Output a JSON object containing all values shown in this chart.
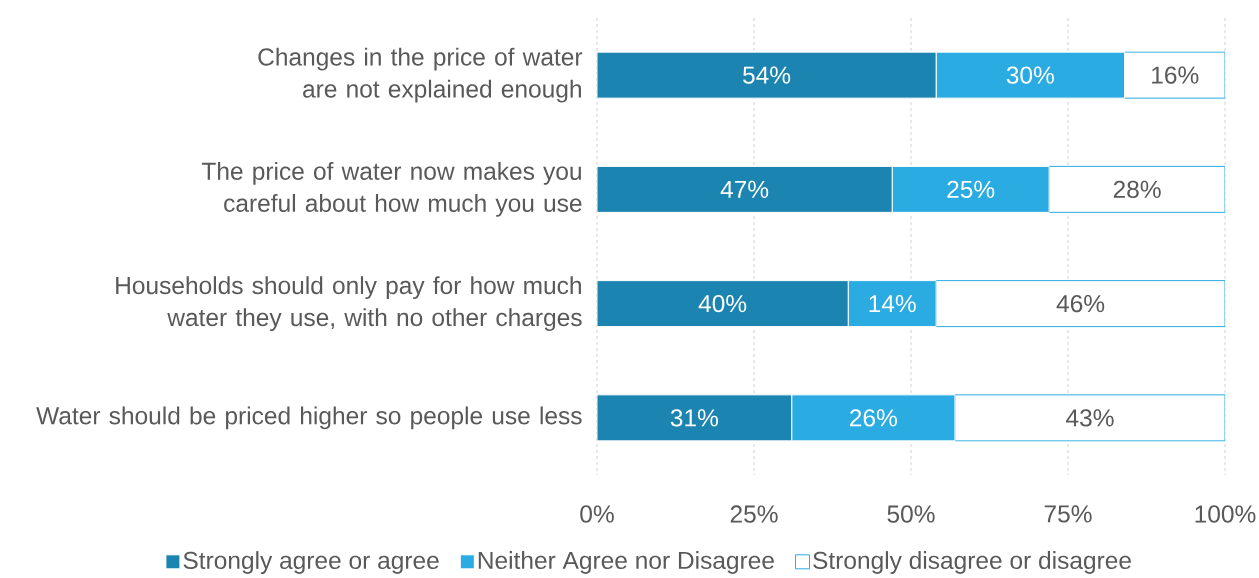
{
  "chart_data": {
    "type": "bar",
    "orientation": "horizontal",
    "stacked": true,
    "categories": [
      "Changes in the price of water are not explained enough",
      "The price of water now makes you careful about how much you use",
      "Households should only pay for how much water they use, with no other charges",
      "Water should be priced higher so people use less"
    ],
    "series": [
      {
        "name": "Strongly agree or agree",
        "color": "#1b84b0",
        "values": [
          54,
          47,
          40,
          31
        ],
        "value_labels": [
          "54%",
          "47%",
          "40%",
          "31%"
        ]
      },
      {
        "name": "Neither Agree nor Disagree",
        "color": "#2aabe2",
        "values": [
          30,
          25,
          14,
          26
        ],
        "value_labels": [
          "30%",
          "25%",
          "14%",
          "26%"
        ]
      },
      {
        "name": "Strongly disagree or disagree",
        "color": "#ffffff",
        "values": [
          16,
          28,
          46,
          43
        ],
        "value_labels": [
          "16%",
          "28%",
          "46%",
          "43%"
        ]
      }
    ],
    "xlim": [
      0,
      100
    ],
    "xticks": [
      {
        "value": 0,
        "label": "0%"
      },
      {
        "value": 25,
        "label": "25%"
      },
      {
        "value": 50,
        "label": "50%"
      },
      {
        "value": 75,
        "label": "75%"
      },
      {
        "value": 100,
        "label": "100%"
      }
    ],
    "grid": "x",
    "legend": "bottom"
  }
}
